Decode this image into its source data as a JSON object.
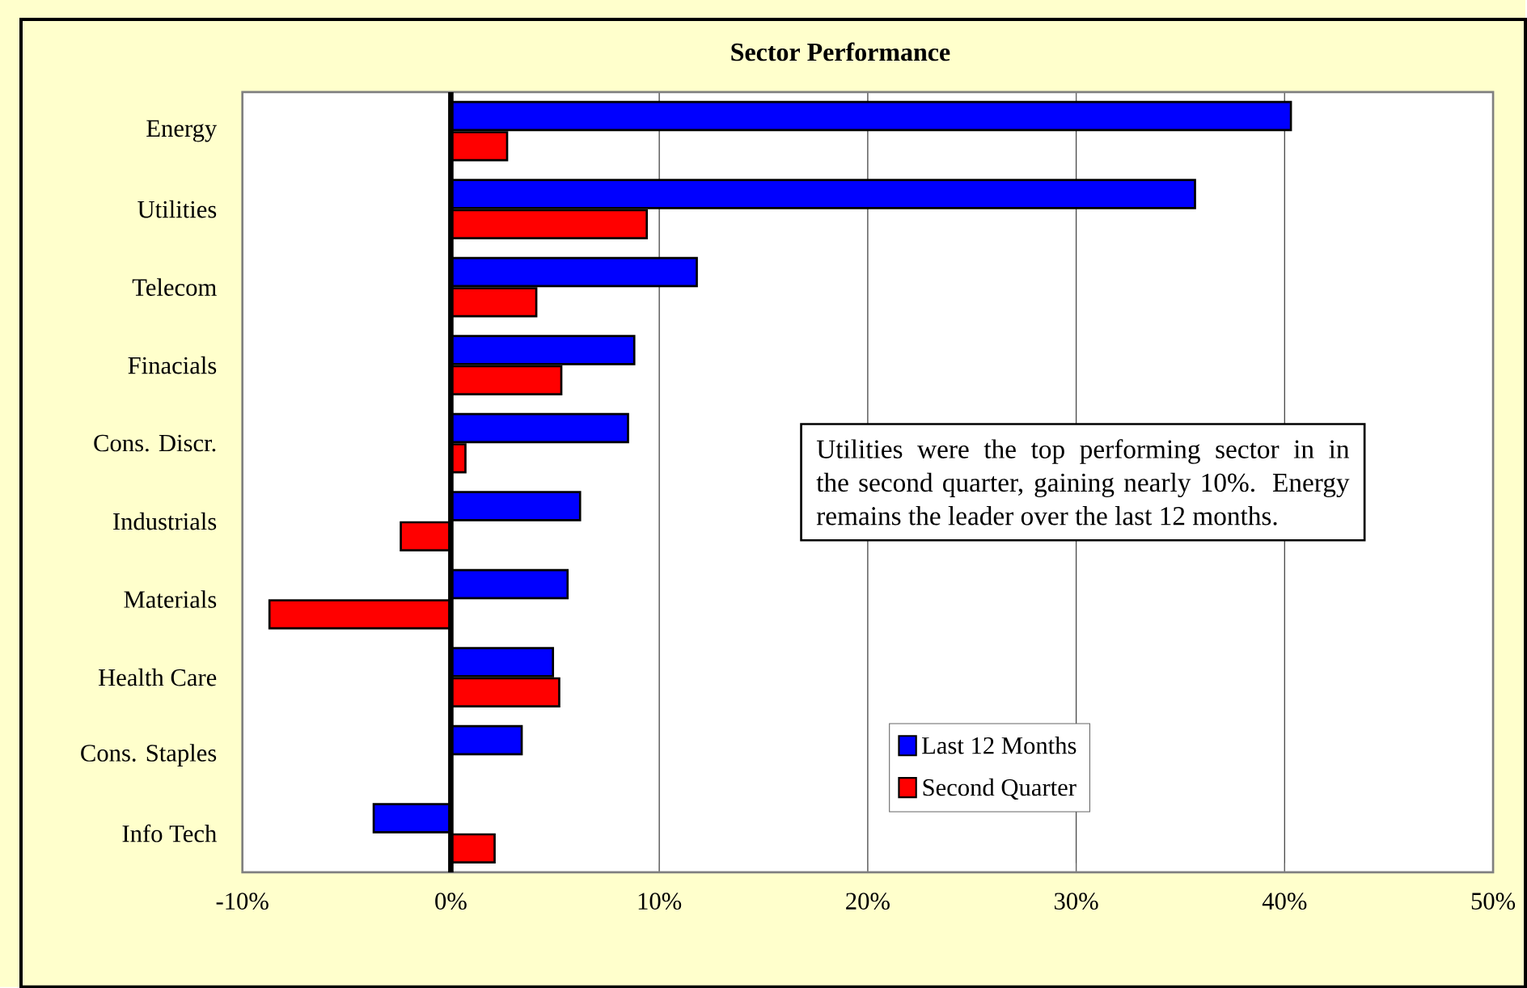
{
  "chart_data": {
    "type": "bar",
    "orientation": "horizontal",
    "title": "Sector Performance",
    "categories": [
      "Energy",
      "Utilities",
      "Telecom",
      "Finacials",
      "Cons. Discr.",
      "Industrials",
      "Materials",
      "Health Care",
      "Cons. Staples",
      "Info Tech"
    ],
    "series": [
      {
        "name": "Last 12 Months",
        "color": "#0000ff",
        "values": [
          40.3,
          35.7,
          11.8,
          8.8,
          8.5,
          6.2,
          5.6,
          4.9,
          3.4,
          -3.7
        ]
      },
      {
        "name": "Second Quarter",
        "color": "#ff0000",
        "values": [
          2.7,
          9.4,
          4.1,
          5.3,
          0.7,
          -2.4,
          -8.7,
          5.2,
          null,
          2.1
        ]
      }
    ],
    "xlim": [
      -10,
      50
    ],
    "xticks": [
      {
        "value": -10,
        "label": "-10%"
      },
      {
        "value": 0,
        "label": "0%"
      },
      {
        "value": 10,
        "label": "10%"
      },
      {
        "value": 20,
        "label": "20%"
      },
      {
        "value": 30,
        "label": "30%"
      },
      {
        "value": 40,
        "label": "40%"
      },
      {
        "value": 50,
        "label": "50%"
      }
    ],
    "grid": "x",
    "legend": "bottom right",
    "annotations": [
      "Utilities were the top performing sector in in the second quarter, gaining nearly 10%.  Energy remains the leader over the last 12 months."
    ]
  }
}
